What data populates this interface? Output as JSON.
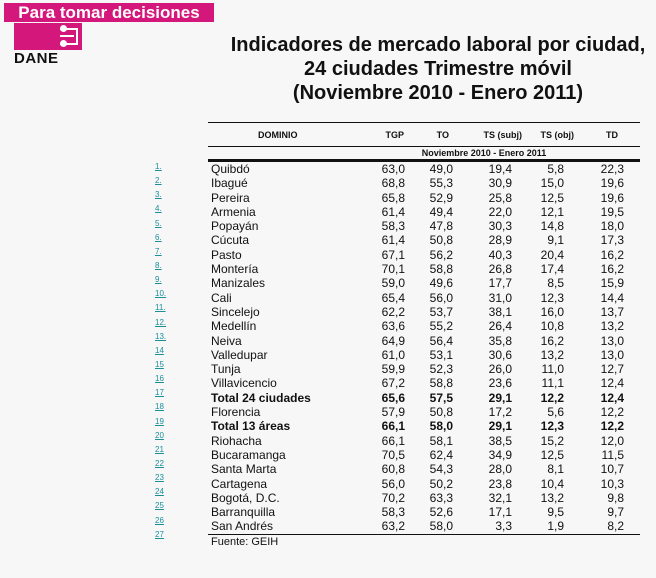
{
  "brand": {
    "tagline": "Para tomar decisiones",
    "logo_text": "DANE",
    "color": "#d4177a"
  },
  "title": [
    "Indicadores de mercado laboral por ciudad,",
    "24 ciudades Trimestre móvil",
    "(Noviembre 2010 - Enero 2011)"
  ],
  "table": {
    "headers": [
      "DOMINIO",
      "TGP",
      "TO",
      "TS (subj)",
      "TS (obj)",
      "TD"
    ],
    "period": "Noviembre 2010 - Enero 2011",
    "rows": [
      [
        "Quibdó",
        "63,0",
        "49,0",
        "19,4",
        "5,8",
        "22,3"
      ],
      [
        "Ibagué",
        "68,8",
        "55,3",
        "30,9",
        "15,0",
        "19,6"
      ],
      [
        "Pereira",
        "65,8",
        "52,9",
        "25,8",
        "12,5",
        "19,6"
      ],
      [
        "Armenia",
        "61,4",
        "49,4",
        "22,0",
        "12,1",
        "19,5"
      ],
      [
        "Popayán",
        "58,3",
        "47,8",
        "30,3",
        "14,8",
        "18,0"
      ],
      [
        "Cúcuta",
        "61,4",
        "50,8",
        "28,9",
        "9,1",
        "17,3"
      ],
      [
        "Pasto",
        "67,1",
        "56,2",
        "40,3",
        "20,4",
        "16,2"
      ],
      [
        "Montería",
        "70,1",
        "58,8",
        "26,8",
        "17,4",
        "16,2"
      ],
      [
        "Manizales",
        "59,0",
        "49,6",
        "17,7",
        "8,5",
        "15,9"
      ],
      [
        "Cali",
        "65,4",
        "56,0",
        "31,0",
        "12,3",
        "14,4"
      ],
      [
        "Sincelejo",
        "62,2",
        "53,7",
        "38,1",
        "16,0",
        "13,7"
      ],
      [
        "Medellín",
        "63,6",
        "55,2",
        "26,4",
        "10,8",
        "13,2"
      ],
      [
        "Neiva",
        "64,9",
        "56,4",
        "35,8",
        "16,2",
        "13,0"
      ],
      [
        "Valledupar",
        "61,0",
        "53,1",
        "30,6",
        "13,2",
        "13,0"
      ],
      [
        "Tunja",
        "59,9",
        "52,3",
        "26,0",
        "11,0",
        "12,7"
      ],
      [
        "Villavicencio",
        "67,2",
        "58,8",
        "23,6",
        "11,1",
        "12,4"
      ],
      [
        "Total 24 ciudades",
        "65,6",
        "57,5",
        "29,1",
        "12,2",
        "12,4"
      ],
      [
        "Florencia",
        "57,9",
        "50,8",
        "17,2",
        "5,6",
        "12,2"
      ],
      [
        "Total 13 áreas",
        "66,1",
        "58,0",
        "29,1",
        "12,3",
        "12,2"
      ],
      [
        "Riohacha",
        "66,1",
        "58,1",
        "38,5",
        "15,2",
        "12,0"
      ],
      [
        "Bucaramanga",
        "70,5",
        "62,4",
        "34,9",
        "12,5",
        "11,5"
      ],
      [
        "Santa Marta",
        "60,8",
        "54,3",
        "28,0",
        "8,1",
        "10,7"
      ],
      [
        "Cartagena",
        "56,0",
        "50,2",
        "23,8",
        "10,4",
        "10,3"
      ],
      [
        "Bogotá, D.C.",
        "70,2",
        "63,3",
        "32,1",
        "13,2",
        "9,8"
      ],
      [
        "Barranquilla",
        "58,3",
        "52,6",
        "17,1",
        "9,5",
        "9,7"
      ],
      [
        "San Andrés",
        "63,2",
        "58,0",
        "3,3",
        "1,9",
        "8,2"
      ]
    ],
    "bold_rows": [
      16,
      18
    ],
    "source": "Fuente: GEIH"
  },
  "row_links": [
    "1.",
    "2.",
    "3.",
    "4.",
    "5.",
    "6.",
    "7.",
    "8.",
    "9.",
    "10.",
    "11.",
    "12.",
    "13.",
    "14",
    "15",
    "16",
    "17",
    "18",
    "19",
    "20",
    "21",
    "22",
    "23",
    "24",
    "25",
    "26",
    "27"
  ]
}
